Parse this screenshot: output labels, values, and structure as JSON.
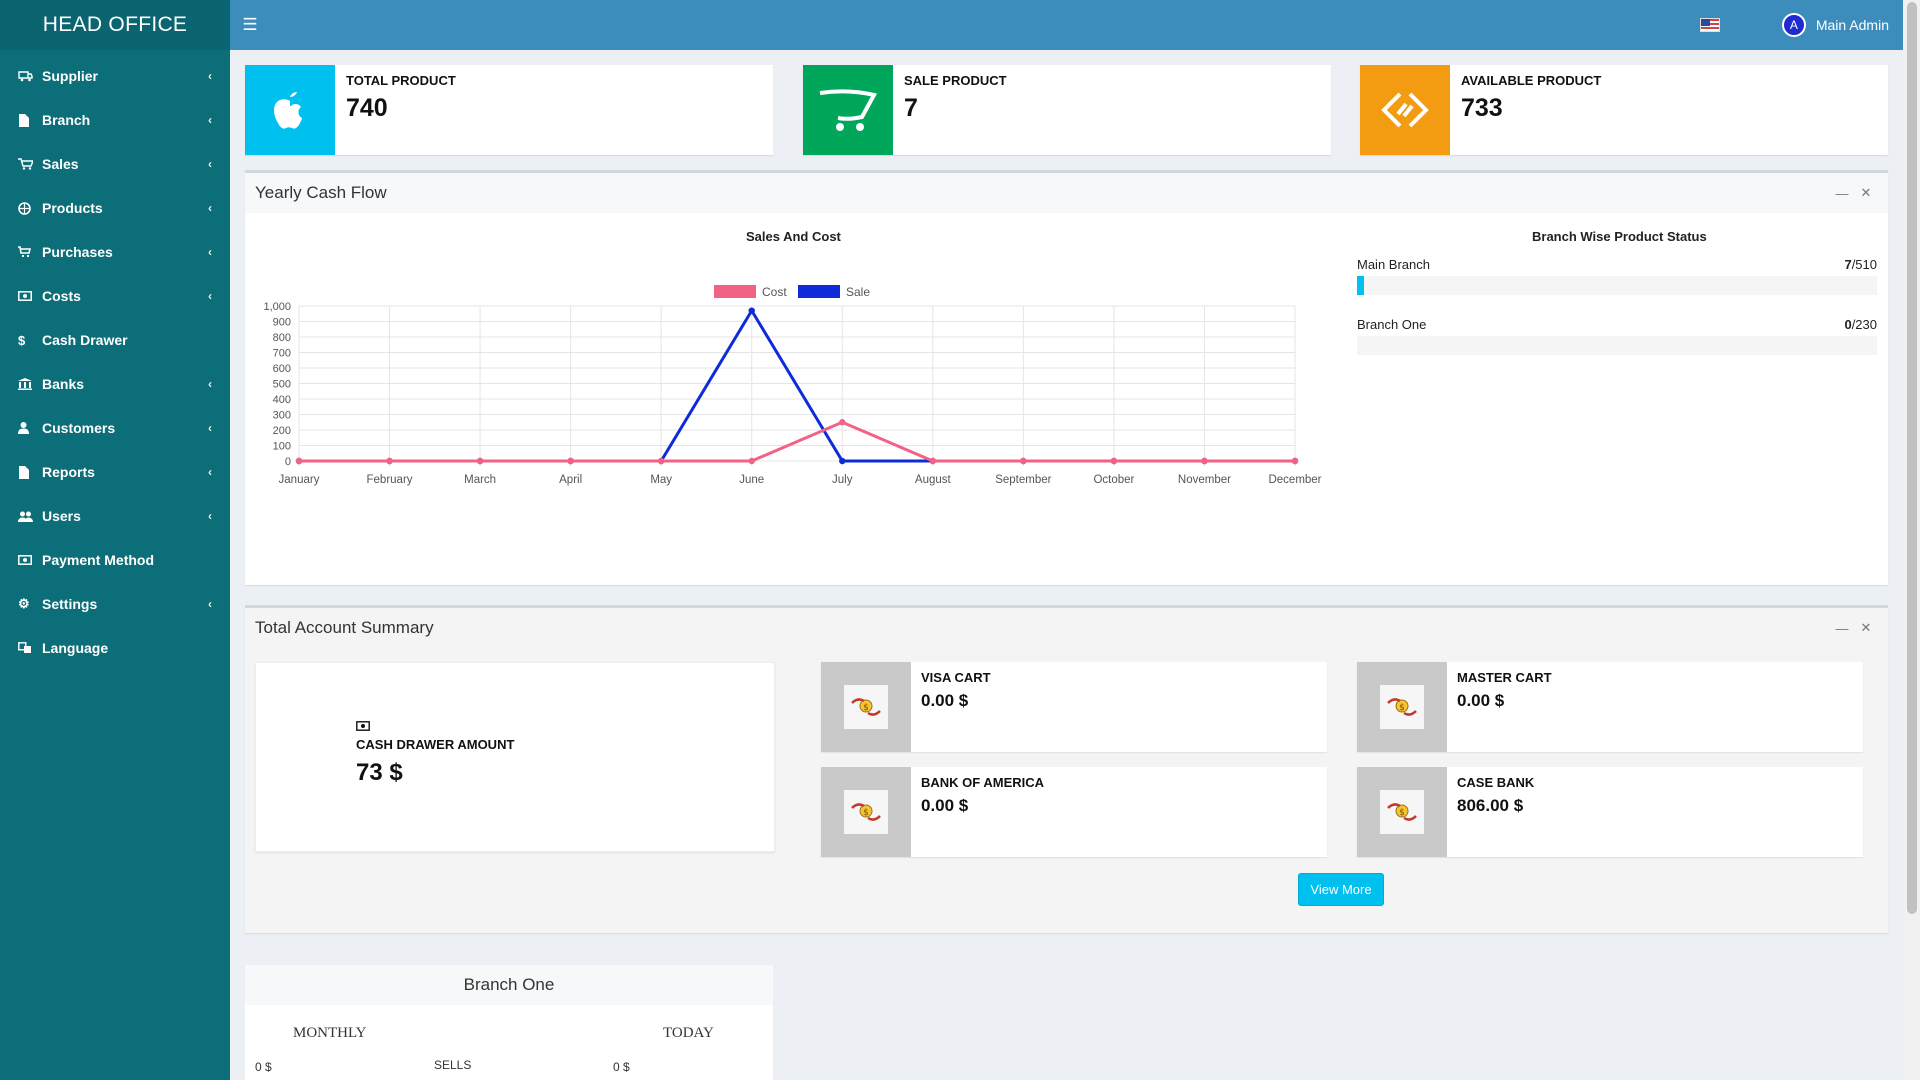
{
  "app": {
    "title": "HEAD OFFICE"
  },
  "sidebar": {
    "items": [
      {
        "label": "Supplier",
        "icon": "truck-icon",
        "has_children": true
      },
      {
        "label": "Branch",
        "icon": "file-icon",
        "has_children": true
      },
      {
        "label": "Sales",
        "icon": "cart-icon",
        "has_children": true
      },
      {
        "label": "Products",
        "icon": "globe-icon",
        "has_children": true
      },
      {
        "label": "Purchases",
        "icon": "cart-flat-icon",
        "has_children": true
      },
      {
        "label": "Costs",
        "icon": "money-icon",
        "has_children": true
      },
      {
        "label": "Cash Drawer",
        "icon": "dollar-icon",
        "has_children": false
      },
      {
        "label": "Banks",
        "icon": "bank-icon",
        "has_children": true
      },
      {
        "label": "Customers",
        "icon": "user-icon",
        "has_children": true
      },
      {
        "label": "Reports",
        "icon": "file-icon",
        "has_children": true
      },
      {
        "label": "Users",
        "icon": "users-icon",
        "has_children": true
      },
      {
        "label": "Payment Method",
        "icon": "money-icon",
        "has_children": false
      },
      {
        "label": "Settings",
        "icon": "gear-icon",
        "has_children": true
      },
      {
        "label": "Language",
        "icon": "language-icon",
        "has_children": false
      }
    ]
  },
  "topbar": {
    "user_name": "Main Admin",
    "avatar_letter": "A"
  },
  "stats": [
    {
      "title": "TOTAL PRODUCT",
      "value": "740",
      "color": "#00c0ef",
      "icon": "apple-icon"
    },
    {
      "title": "SALE PRODUCT",
      "value": "7",
      "color": "#00a65a",
      "icon": "cart-icon"
    },
    {
      "title": "AVAILABLE PRODUCT",
      "value": "733",
      "color": "#f39c12",
      "icon": "diamond-icon"
    }
  ],
  "cashflow": {
    "title": "Yearly Cash Flow",
    "chart_title": "Sales And Cost",
    "branch_status_title": "Branch Wise Product Status",
    "branches": [
      {
        "name": "Main Branch",
        "sold": "7",
        "total": "/510",
        "fraction": 0.0137
      },
      {
        "name": "Branch One",
        "sold": "0",
        "total": "/230",
        "fraction": 0
      }
    ]
  },
  "chart_data": {
    "type": "line",
    "title": "Sales And Cost",
    "categories": [
      "January",
      "February",
      "March",
      "April",
      "May",
      "June",
      "July",
      "August",
      "September",
      "October",
      "November",
      "December"
    ],
    "series": [
      {
        "name": "Cost",
        "color": "#f06384",
        "values": [
          0,
          0,
          0,
          0,
          0,
          0,
          250,
          0,
          0,
          0,
          0,
          0
        ]
      },
      {
        "name": "Sale",
        "color": "#0d2bd8",
        "values": [
          0,
          0,
          0,
          0,
          0,
          970,
          0,
          0,
          0,
          0,
          0,
          0
        ]
      }
    ],
    "ylim": [
      0,
      1000
    ],
    "yticks": [
      "1,000",
      "900",
      "800",
      "700",
      "600",
      "500",
      "400",
      "300",
      "200",
      "100",
      "0"
    ],
    "grid": true,
    "legend": "top"
  },
  "account_summary": {
    "title": "Total Account Summary",
    "cash_drawer": {
      "label": "CASH DRAWER AMOUNT",
      "value": "73 $"
    },
    "accounts": [
      {
        "name": "VISA CART",
        "value": "0.00 $"
      },
      {
        "name": "MASTER CART",
        "value": "0.00 $"
      },
      {
        "name": "BANK OF AMERICA",
        "value": "0.00 $"
      },
      {
        "name": "CASE BANK",
        "value": "806.00 $"
      }
    ],
    "view_more": "View More"
  },
  "branch_one": {
    "title": "Branch One",
    "monthly": "MONTHLY",
    "today": "TODAY",
    "monthly_value": "0 $",
    "sells_label": "SELLS",
    "today_value": "0 $"
  }
}
